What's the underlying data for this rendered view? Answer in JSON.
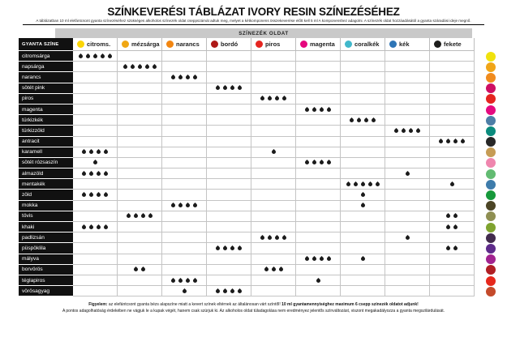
{
  "title": "SZÍNKEVERÉSI TÁBLÁZAT IVORY RESIN SZÍNEZÉSÉHEZ",
  "subtitle": "A táblázatban 10 ml elefántcsont gyanta színezéséhez szükséges alkoholos színezék oldat cseppszámát adtuk meg, melyet a kétkomponens összekeverése előtt kell 5 ml A komponenshez adagolni. A színezék oldat hozzáadásától a gyanta száradási ideje megnő.",
  "chart_data": {
    "type": "table",
    "group_header": "SZÍNEZÉK OLDAT",
    "row_header": "GYANTA SZÍNE",
    "drop_unit": "csepp",
    "drop_color": "#1b1b1b",
    "columns": [
      {
        "label": "citroms.",
        "color": "#fbd505"
      },
      {
        "label": "mézsárga",
        "color": "#f0a714"
      },
      {
        "label": "narancs",
        "color": "#f28611"
      },
      {
        "label": "bordó",
        "color": "#ae1917"
      },
      {
        "label": "piros",
        "color": "#e52520"
      },
      {
        "label": "magenta",
        "color": "#e5087e"
      },
      {
        "label": "coralkék",
        "color": "#41b8cb"
      },
      {
        "label": "kék",
        "color": "#2e75b6"
      },
      {
        "label": "fekete",
        "color": "#1d1d1b"
      }
    ],
    "rows": [
      {
        "name": "citromsárga",
        "swatch": "#f0e20d",
        "drops": [
          5,
          0,
          0,
          0,
          0,
          0,
          0,
          0,
          0
        ]
      },
      {
        "name": "napsárga",
        "swatch": "#f0a518",
        "drops": [
          0,
          5,
          0,
          0,
          0,
          0,
          0,
          0,
          0
        ]
      },
      {
        "name": "narancs",
        "swatch": "#f08b1d",
        "drops": [
          0,
          0,
          4,
          0,
          0,
          0,
          0,
          0,
          0
        ]
      },
      {
        "name": "sötét pink",
        "swatch": "#ce0f63",
        "drops": [
          0,
          0,
          0,
          4,
          0,
          0,
          0,
          0,
          0
        ]
      },
      {
        "name": "piros",
        "swatch": "#e52420",
        "drops": [
          0,
          0,
          0,
          0,
          4,
          0,
          0,
          0,
          0
        ]
      },
      {
        "name": "magenta",
        "swatch": "#e50a7f",
        "drops": [
          0,
          0,
          0,
          0,
          0,
          4,
          0,
          0,
          0
        ]
      },
      {
        "name": "türkizkék",
        "swatch": "#4d7ea6",
        "drops": [
          0,
          0,
          0,
          0,
          0,
          0,
          4,
          0,
          0
        ]
      },
      {
        "name": "türkizzöld",
        "swatch": "#0b8b7d",
        "drops": [
          0,
          0,
          0,
          0,
          0,
          0,
          0,
          4,
          0
        ]
      },
      {
        "name": "antracit",
        "swatch": "#272727",
        "drops": [
          0,
          0,
          0,
          0,
          0,
          0,
          0,
          0,
          4
        ]
      },
      {
        "name": "karamell",
        "swatch": "#c69c55",
        "drops": [
          4,
          0,
          0,
          0,
          1,
          0,
          0,
          0,
          0
        ]
      },
      {
        "name": "sötét rózsaszín",
        "swatch": "#ef86ae",
        "drops": [
          1,
          0,
          0,
          0,
          0,
          4,
          0,
          0,
          0
        ]
      },
      {
        "name": "almazöld",
        "swatch": "#62bb72",
        "drops": [
          4,
          0,
          0,
          0,
          0,
          0,
          0,
          1,
          0
        ]
      },
      {
        "name": "mentakék",
        "swatch": "#3e7cab",
        "drops": [
          0,
          0,
          0,
          0,
          0,
          0,
          5,
          0,
          1
        ]
      },
      {
        "name": "zöld",
        "swatch": "#17993b",
        "drops": [
          4,
          0,
          0,
          0,
          0,
          0,
          1,
          0,
          0
        ]
      },
      {
        "name": "mokka",
        "swatch": "#4c4526",
        "drops": [
          0,
          0,
          4,
          0,
          0,
          0,
          1,
          0,
          0
        ]
      },
      {
        "name": "tövis",
        "swatch": "#8f8f52",
        "drops": [
          0,
          4,
          0,
          0,
          0,
          0,
          0,
          0,
          2
        ]
      },
      {
        "name": "khaki",
        "swatch": "#7fa32f",
        "drops": [
          4,
          0,
          0,
          0,
          0,
          0,
          0,
          0,
          2
        ]
      },
      {
        "name": "padlizsán",
        "swatch": "#422b4d",
        "drops": [
          0,
          0,
          0,
          0,
          4,
          0,
          0,
          1,
          0
        ]
      },
      {
        "name": "püspöklila",
        "swatch": "#5e2b8a",
        "drops": [
          0,
          0,
          0,
          4,
          0,
          0,
          0,
          0,
          2
        ]
      },
      {
        "name": "mályva",
        "swatch": "#a1238f",
        "drops": [
          0,
          0,
          0,
          0,
          0,
          4,
          1,
          0,
          0
        ]
      },
      {
        "name": "borvörös",
        "swatch": "#b01f24",
        "drops": [
          0,
          2,
          0,
          0,
          3,
          0,
          0,
          0,
          0
        ]
      },
      {
        "name": "téglapiros",
        "swatch": "#e6281c",
        "drops": [
          0,
          0,
          4,
          0,
          0,
          1,
          0,
          0,
          0
        ]
      },
      {
        "name": "vörösagyag",
        "swatch": "#c44a2b",
        "drops": [
          0,
          0,
          1,
          4,
          0,
          0,
          0,
          0,
          0
        ]
      }
    ]
  },
  "footer": {
    "line1_prefix": "Figyelem:",
    "line1_text": " az elefántcsont gyanta bézs alapszíne miatt a kevert színek eltérnek az általánosan várt színtől! ",
    "line1_bold": "10 ml gyantamennyiséghez maximum 6 csepp színezék oldatot adjunk!",
    "line2": "A pontos adagolhatóság érdekében ne vágjuk le a kupak végét, hanem csak szúrjuk ki. Az alkoholos oldat túladagolása nem eredményez jelentős színváltozást, viszont megakadályozza a gyanta megszilárdulását."
  }
}
